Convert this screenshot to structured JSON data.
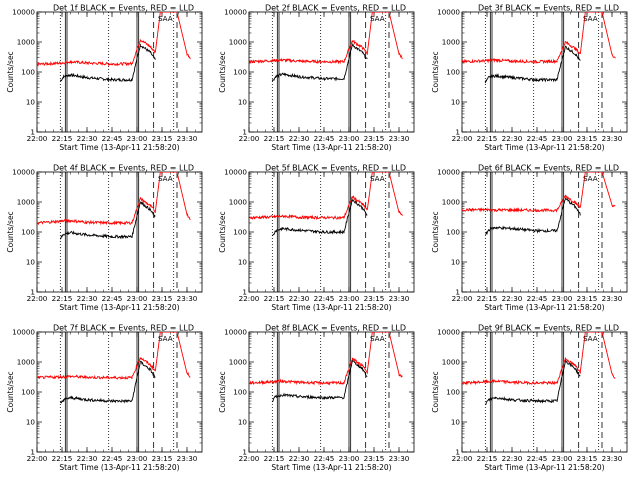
{
  "chart_data": [
    {
      "type": "line",
      "title": "Det 1f BLACK = Events, RED = LLD",
      "xlabel": "Start Time (13-Apr-11 21:58:20)",
      "ylabel": "Counts/sec",
      "ylog": true,
      "ylim": [
        1,
        10000
      ],
      "xlim": [
        "22:00",
        "23:39"
      ],
      "x_ticks": [
        "22:00",
        "22:15",
        "22:30",
        "22:45",
        "23:00",
        "23:15",
        "23:30"
      ],
      "y_ticks": [
        "1",
        "10",
        "100",
        "1000",
        "10000"
      ],
      "dotted_lines": [
        "22:14",
        "22:43",
        "23:22"
      ],
      "solid_lines": [
        "22:17",
        "22:18",
        "23:00",
        "23:01"
      ],
      "dashed_lines": [
        "23:10",
        "23:24"
      ],
      "annotation": "SAA",
      "series": [
        {
          "color": "#000000",
          "x": [
            "22:14",
            "22:16",
            "22:20",
            "22:30",
            "22:45",
            "22:57",
            "23:02",
            "23:08",
            "23:11",
            "23:11",
            "23:14"
          ],
          "y": [
            50,
            70,
            80,
            65,
            55,
            55,
            800,
            450,
            250,
            null,
            null
          ]
        },
        {
          "color": "#ff0000",
          "x": [
            "22:00",
            "22:15",
            "22:20",
            "22:30",
            "22:45",
            "22:57",
            "23:02",
            "23:08",
            "23:11",
            "23:14",
            "23:18",
            "23:24",
            "23:30",
            "23:32"
          ],
          "y": [
            180,
            200,
            220,
            200,
            185,
            190,
            1200,
            700,
            450,
            10000,
            10000,
            10000,
            400,
            300
          ]
        }
      ]
    },
    {
      "type": "line",
      "title": "Det 2f BLACK = Events, RED = LLD",
      "xlabel": "Start Time (13-Apr-11 21:58:20)",
      "ylabel": "Counts/sec",
      "ylog": true,
      "ylim": [
        1,
        10000
      ],
      "xlim": [
        "22:00",
        "23:39"
      ],
      "x_ticks": [
        "22:00",
        "22:15",
        "22:30",
        "22:45",
        "23:00",
        "23:15",
        "23:30"
      ],
      "y_ticks": [
        "1",
        "10",
        "100",
        "1000",
        "10000"
      ],
      "dotted_lines": [
        "22:14",
        "22:43",
        "23:22"
      ],
      "solid_lines": [
        "22:17",
        "22:18",
        "23:00",
        "23:01"
      ],
      "dashed_lines": [
        "23:10",
        "23:24"
      ],
      "annotation": "SAA",
      "series": [
        {
          "color": "#000000",
          "x": [
            "22:14",
            "22:16",
            "22:20",
            "22:30",
            "22:45",
            "22:57",
            "23:02",
            "23:08",
            "23:11"
          ],
          "y": [
            50,
            70,
            85,
            70,
            60,
            60,
            800,
            450,
            250
          ]
        },
        {
          "color": "#ff0000",
          "x": [
            "22:00",
            "22:15",
            "22:20",
            "22:30",
            "22:45",
            "22:57",
            "23:02",
            "23:08",
            "23:11",
            "23:14",
            "23:18",
            "23:24",
            "23:30",
            "23:32"
          ],
          "y": [
            220,
            240,
            250,
            230,
            220,
            220,
            1100,
            650,
            420,
            10000,
            10000,
            10000,
            400,
            300
          ]
        }
      ]
    },
    {
      "type": "line",
      "title": "Det 3f BLACK = Events, RED = LLD",
      "xlabel": "Start Time (13-Apr-11 21:58:20)",
      "ylabel": "Counts/sec",
      "ylog": true,
      "ylim": [
        1,
        10000
      ],
      "xlim": [
        "22:00",
        "23:39"
      ],
      "x_ticks": [
        "22:00",
        "22:15",
        "22:30",
        "22:45",
        "23:00",
        "23:15",
        "23:30"
      ],
      "y_ticks": [
        "1",
        "10",
        "100",
        "1000",
        "10000"
      ],
      "dotted_lines": [
        "22:14",
        "22:43",
        "23:22"
      ],
      "solid_lines": [
        "22:17",
        "22:18",
        "23:00",
        "23:01"
      ],
      "dashed_lines": [
        "23:10",
        "23:24"
      ],
      "annotation": "SAA",
      "series": [
        {
          "color": "#000000",
          "x": [
            "22:14",
            "22:16",
            "22:20",
            "22:30",
            "22:45",
            "22:57",
            "23:02",
            "23:08",
            "23:11"
          ],
          "y": [
            45,
            65,
            75,
            65,
            55,
            55,
            700,
            400,
            230
          ]
        },
        {
          "color": "#ff0000",
          "x": [
            "22:00",
            "22:15",
            "22:20",
            "22:30",
            "22:45",
            "22:57",
            "23:02",
            "23:08",
            "23:11",
            "23:14",
            "23:18",
            "23:24",
            "23:30",
            "23:32"
          ],
          "y": [
            220,
            240,
            250,
            230,
            220,
            230,
            1000,
            600,
            400,
            10000,
            10000,
            10000,
            380,
            300
          ]
        }
      ]
    },
    {
      "type": "line",
      "title": "Det 4f BLACK = Events, RED = LLD",
      "xlabel": "Start Time (13-Apr-11 21:58:20)",
      "ylabel": "Counts/sec",
      "ylog": true,
      "ylim": [
        1,
        10000
      ],
      "xlim": [
        "22:00",
        "23:39"
      ],
      "x_ticks": [
        "22:00",
        "22:15",
        "22:30",
        "22:45",
        "23:00",
        "23:15",
        "23:30"
      ],
      "y_ticks": [
        "1",
        "10",
        "100",
        "1000",
        "10000"
      ],
      "dotted_lines": [
        "22:14",
        "22:43",
        "23:22"
      ],
      "solid_lines": [
        "22:17",
        "22:18",
        "23:00",
        "23:01"
      ],
      "dashed_lines": [
        "23:10",
        "23:24"
      ],
      "annotation": "SAA",
      "series": [
        {
          "color": "#000000",
          "x": [
            "22:14",
            "22:16",
            "22:20",
            "22:30",
            "22:45",
            "22:57",
            "23:02",
            "23:08",
            "23:11"
          ],
          "y": [
            60,
            85,
            95,
            80,
            70,
            70,
            1000,
            550,
            300
          ]
        },
        {
          "color": "#ff0000",
          "x": [
            "22:00",
            "22:15",
            "22:20",
            "22:30",
            "22:45",
            "22:57",
            "23:02",
            "23:08",
            "23:11",
            "23:14",
            "23:18",
            "23:24",
            "23:30",
            "23:32"
          ],
          "y": [
            200,
            230,
            240,
            210,
            200,
            200,
            1300,
            750,
            480,
            10000,
            10000,
            10000,
            380,
            280
          ]
        }
      ]
    },
    {
      "type": "line",
      "title": "Det 5f BLACK = Events, RED = LLD",
      "xlabel": "Start Time (13-Apr-11 21:58:20)",
      "ylabel": "Counts/sec",
      "ylog": true,
      "ylim": [
        1,
        10000
      ],
      "xlim": [
        "22:00",
        "23:39"
      ],
      "x_ticks": [
        "22:00",
        "22:15",
        "22:30",
        "22:45",
        "23:00",
        "23:15",
        "23:30"
      ],
      "y_ticks": [
        "1",
        "10",
        "100",
        "1000",
        "10000"
      ],
      "dotted_lines": [
        "22:14",
        "22:43",
        "23:22"
      ],
      "solid_lines": [
        "22:17",
        "22:18",
        "23:00",
        "23:01"
      ],
      "dashed_lines": [
        "23:10",
        "23:24"
      ],
      "annotation": "SAA",
      "series": [
        {
          "color": "#000000",
          "x": [
            "22:14",
            "22:16",
            "22:20",
            "22:30",
            "22:45",
            "22:57",
            "23:02",
            "23:08",
            "23:11"
          ],
          "y": [
            70,
            110,
            130,
            115,
            100,
            100,
            1200,
            650,
            350
          ]
        },
        {
          "color": "#ff0000",
          "x": [
            "22:00",
            "22:15",
            "22:20",
            "22:30",
            "22:45",
            "22:57",
            "23:02",
            "23:08",
            "23:11",
            "23:14",
            "23:18",
            "23:24",
            "23:30",
            "23:32"
          ],
          "y": [
            300,
            320,
            340,
            310,
            300,
            300,
            1500,
            850,
            550,
            10000,
            10000,
            10000,
            450,
            380
          ]
        }
      ]
    },
    {
      "type": "line",
      "title": "Det 6f BLACK = Events, RED = LLD",
      "xlabel": "Start Time (13-Apr-11 21:58:20)",
      "ylabel": "Counts/sec",
      "ylog": true,
      "ylim": [
        1,
        10000
      ],
      "xlim": [
        "22:00",
        "23:39"
      ],
      "x_ticks": [
        "22:00",
        "22:15",
        "22:30",
        "22:45",
        "23:00",
        "23:15",
        "23:30"
      ],
      "y_ticks": [
        "1",
        "10",
        "100",
        "1000",
        "10000"
      ],
      "dotted_lines": [
        "22:14",
        "22:43",
        "23:22"
      ],
      "solid_lines": [
        "22:17",
        "22:18",
        "23:00",
        "23:01"
      ],
      "dashed_lines": [
        "23:10",
        "23:24"
      ],
      "annotation": "SAA",
      "series": [
        {
          "color": "#000000",
          "x": [
            "22:14",
            "22:16",
            "22:20",
            "22:30",
            "22:45",
            "22:57",
            "23:02",
            "23:08",
            "23:11"
          ],
          "y": [
            75,
            120,
            140,
            130,
            110,
            110,
            1300,
            700,
            380
          ]
        },
        {
          "color": "#ff0000",
          "x": [
            "22:00",
            "22:15",
            "22:20",
            "22:30",
            "22:45",
            "22:57",
            "23:02",
            "23:08",
            "23:11",
            "23:14",
            "23:18",
            "23:24",
            "23:30",
            "23:32"
          ],
          "y": [
            550,
            550,
            540,
            540,
            530,
            530,
            1600,
            950,
            650,
            10000,
            10000,
            10000,
            800,
            700
          ]
        }
      ]
    },
    {
      "type": "line",
      "title": "Det 7f BLACK = Events, RED = LLD",
      "xlabel": "Start Time (13-Apr-11 21:58:20)",
      "ylabel": "Counts/sec",
      "ylog": true,
      "ylim": [
        1,
        10000
      ],
      "xlim": [
        "22:00",
        "23:39"
      ],
      "x_ticks": [
        "22:00",
        "22:15",
        "22:30",
        "22:45",
        "23:00",
        "23:15",
        "23:30"
      ],
      "y_ticks": [
        "1",
        "10",
        "100",
        "1000",
        "10000"
      ],
      "dotted_lines": [
        "22:14",
        "22:43",
        "23:22"
      ],
      "solid_lines": [
        "22:17",
        "22:18",
        "23:00",
        "23:01"
      ],
      "dashed_lines": [
        "23:10",
        "23:24"
      ],
      "annotation": "SAA",
      "series": [
        {
          "color": "#000000",
          "x": [
            "22:14",
            "22:16",
            "22:20",
            "22:30",
            "22:45",
            "22:57",
            "23:02",
            "23:08",
            "23:11"
          ],
          "y": [
            40,
            55,
            65,
            55,
            50,
            50,
            1000,
            550,
            300
          ]
        },
        {
          "color": "#ff0000",
          "x": [
            "22:00",
            "22:15",
            "22:20",
            "22:30",
            "22:45",
            "22:57",
            "23:02",
            "23:08",
            "23:11",
            "23:14",
            "23:18",
            "23:24",
            "23:30",
            "23:32"
          ],
          "y": [
            300,
            320,
            330,
            310,
            300,
            300,
            1400,
            800,
            500,
            10000,
            10000,
            10000,
            420,
            330
          ]
        }
      ]
    },
    {
      "type": "line",
      "title": "Det 8f BLACK = Events, RED = LLD",
      "xlabel": "Start Time (13-Apr-11 21:58:20)",
      "ylabel": "Counts/sec",
      "ylog": true,
      "ylim": [
        1,
        10000
      ],
      "xlim": [
        "22:00",
        "23:39"
      ],
      "x_ticks": [
        "22:00",
        "22:15",
        "22:30",
        "22:45",
        "23:00",
        "23:15",
        "23:30"
      ],
      "y_ticks": [
        "1",
        "10",
        "100",
        "1000",
        "10000"
      ],
      "dotted_lines": [
        "22:14",
        "22:43",
        "23:22"
      ],
      "solid_lines": [
        "22:17",
        "22:18",
        "23:00",
        "23:01"
      ],
      "dashed_lines": [
        "23:10",
        "23:24"
      ],
      "annotation": "SAA",
      "series": [
        {
          "color": "#000000",
          "x": [
            "22:14",
            "22:16",
            "22:20",
            "22:30",
            "22:45",
            "22:57",
            "23:02",
            "23:08",
            "23:11"
          ],
          "y": [
            50,
            70,
            80,
            70,
            65,
            65,
            1100,
            600,
            320
          ]
        },
        {
          "color": "#ff0000",
          "x": [
            "22:00",
            "22:15",
            "22:20",
            "22:30",
            "22:45",
            "22:57",
            "23:02",
            "23:08",
            "23:11",
            "23:14",
            "23:18",
            "23:24",
            "23:30",
            "23:32"
          ],
          "y": [
            200,
            220,
            230,
            210,
            200,
            200,
            1300,
            750,
            480,
            10000,
            10000,
            10000,
            400,
            300
          ]
        }
      ]
    },
    {
      "type": "line",
      "title": "Det 9f BLACK = Events, RED = LLD",
      "xlabel": "Start Time (13-Apr-11 21:58:20)",
      "ylabel": "Counts/sec",
      "ylog": true,
      "ylim": [
        1,
        10000
      ],
      "xlim": [
        "22:00",
        "23:39"
      ],
      "x_ticks": [
        "22:00",
        "22:15",
        "22:30",
        "22:45",
        "23:00",
        "23:15",
        "23:30"
      ],
      "y_ticks": [
        "1",
        "10",
        "100",
        "1000",
        "10000"
      ],
      "dotted_lines": [
        "22:14",
        "22:43",
        "23:22"
      ],
      "solid_lines": [
        "22:17",
        "22:18",
        "23:00",
        "23:01"
      ],
      "dashed_lines": [
        "23:10",
        "23:24"
      ],
      "annotation": "SAA",
      "series": [
        {
          "color": "#000000",
          "x": [
            "22:14",
            "22:16",
            "22:20",
            "22:30",
            "22:45",
            "22:57",
            "23:02",
            "23:08",
            "23:11"
          ],
          "y": [
            40,
            55,
            65,
            55,
            50,
            50,
            1100,
            600,
            320
          ]
        },
        {
          "color": "#ff0000",
          "x": [
            "22:00",
            "22:15",
            "22:20",
            "22:30",
            "22:45",
            "22:57",
            "23:02",
            "23:08",
            "23:11",
            "23:14",
            "23:18",
            "23:24",
            "23:30",
            "23:32"
          ],
          "y": [
            200,
            220,
            230,
            210,
            200,
            200,
            1300,
            750,
            480,
            10000,
            10000,
            10000,
            400,
            300
          ]
        }
      ]
    }
  ]
}
